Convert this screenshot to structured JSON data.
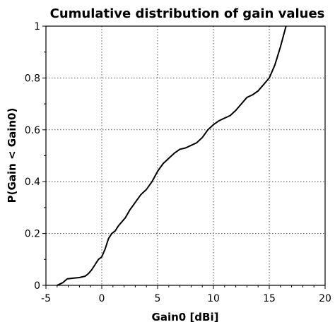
{
  "chart_data": {
    "type": "line",
    "title": "Cumulative distribution of gain values",
    "xlabel": "Gain0 [dBi]",
    "ylabel": "P(Gain < Gain0)",
    "xlim": [
      -5,
      20
    ],
    "ylim": [
      0,
      1
    ],
    "x_ticks": [
      -5,
      0,
      5,
      10,
      15,
      20
    ],
    "y_ticks": [
      0,
      0.2,
      0.4,
      0.6,
      0.8,
      1
    ],
    "x_tick_labels": [
      "-5",
      "0",
      "5",
      "10",
      "15",
      "20"
    ],
    "y_tick_labels": [
      "0",
      "0.2",
      "0.4",
      "0.6",
      "0.8",
      "1"
    ],
    "grid": true,
    "series": [
      {
        "x": [
          -4.0,
          -3.5,
          -3.1,
          -2.5,
          -2.0,
          -1.5,
          -1.2,
          -0.9,
          -0.6,
          -0.3,
          0.0,
          0.3,
          0.6,
          0.9,
          1.2,
          1.5,
          1.8,
          2.1,
          2.5,
          3.0,
          3.5,
          4.0,
          4.5,
          5.0,
          5.5,
          6.0,
          6.5,
          7.0,
          7.5,
          8.0,
          8.5,
          9.0,
          9.5,
          10.0,
          10.5,
          11.0,
          11.5,
          12.0,
          12.5,
          13.0,
          13.5,
          14.0,
          14.5,
          15.0,
          15.5,
          16.0,
          16.5
        ],
        "y": [
          0.0,
          0.01,
          0.025,
          0.028,
          0.03,
          0.035,
          0.045,
          0.06,
          0.08,
          0.1,
          0.11,
          0.14,
          0.18,
          0.2,
          0.21,
          0.23,
          0.245,
          0.26,
          0.29,
          0.32,
          0.35,
          0.37,
          0.4,
          0.44,
          0.47,
          0.49,
          0.51,
          0.525,
          0.53,
          0.54,
          0.55,
          0.57,
          0.6,
          0.62,
          0.635,
          0.645,
          0.655,
          0.675,
          0.7,
          0.725,
          0.735,
          0.75,
          0.775,
          0.8,
          0.85,
          0.92,
          1.0
        ]
      }
    ]
  }
}
